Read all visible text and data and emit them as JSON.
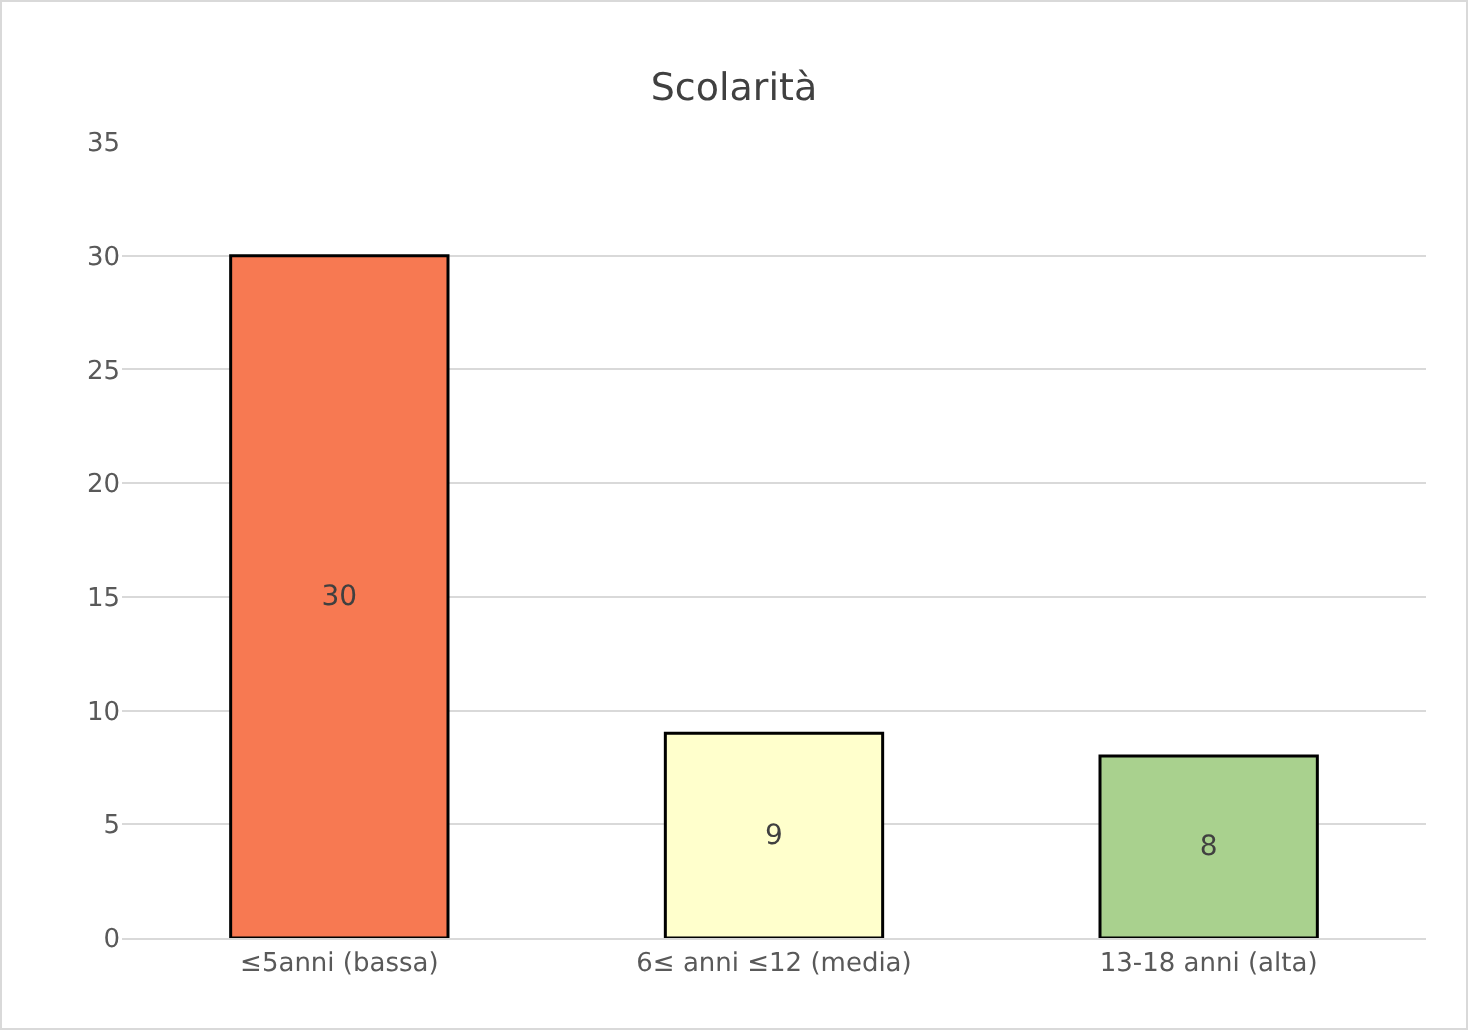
{
  "chart_data": {
    "type": "bar",
    "title": "Scolarità",
    "categories": [
      "≤5anni (bassa)",
      "6≤ anni ≤12 (media)",
      "13-18 anni (alta)"
    ],
    "values": [
      30,
      9,
      8
    ],
    "colors": [
      "#f77952",
      "#ffffcc",
      "#a9d18e"
    ],
    "ylim": [
      0,
      35
    ],
    "yticks": [
      0,
      5,
      10,
      15,
      20,
      25,
      30,
      35
    ],
    "grid": "y",
    "data_labels": true
  }
}
